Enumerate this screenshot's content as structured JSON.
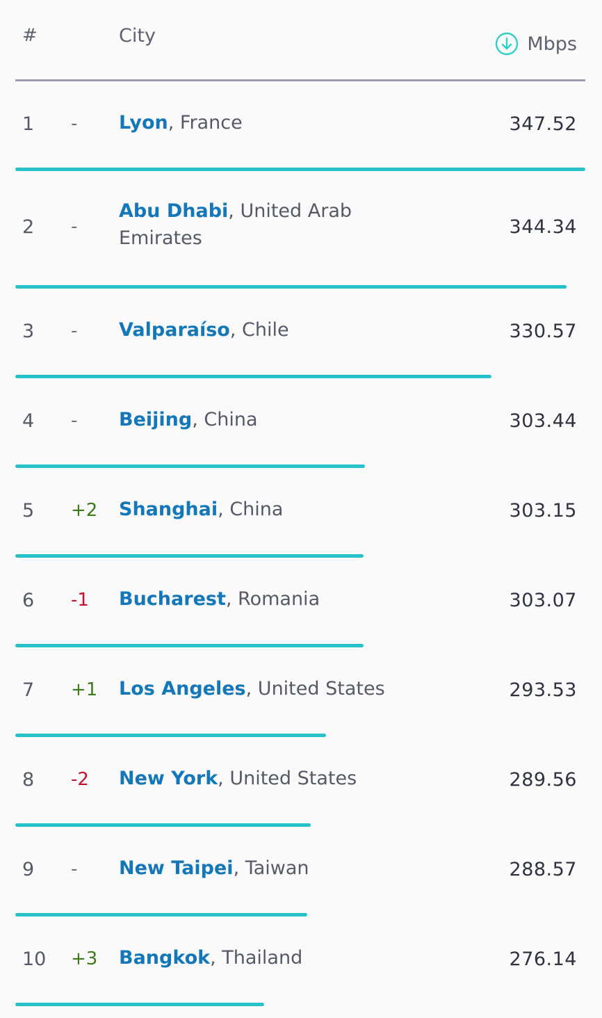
{
  "header": {
    "rank_label": "#",
    "city_label": "City",
    "unit_label": "Mbps",
    "unit_icon": "download-arrow-circle-icon"
  },
  "colors": {
    "bar": "#27c2c9",
    "city_link": "#1477b8",
    "change_up": "#3f7a1a",
    "change_down": "#c8102e",
    "header_rule": "#9e9bb3"
  },
  "rows": [
    {
      "rank": "1",
      "change": "-",
      "city": "Lyon",
      "sep": ",",
      "country": " France",
      "speed": "347.52",
      "speed_value": 347.52
    },
    {
      "rank": "2",
      "change": "-",
      "city": "Abu Dhabi",
      "sep": ",",
      "country": " United Arab Emirates",
      "speed": "344.34",
      "speed_value": 344.34
    },
    {
      "rank": "3",
      "change": "-",
      "city": "Valparaíso",
      "sep": ",",
      "country": " Chile",
      "speed": "330.57",
      "speed_value": 330.57
    },
    {
      "rank": "4",
      "change": "-",
      "city": "Beijing",
      "sep": ",",
      "country": " China",
      "speed": "303.44",
      "speed_value": 303.44
    },
    {
      "rank": "5",
      "change": "+2",
      "city": "Shanghai",
      "sep": ",",
      "country": " China",
      "speed": "303.15",
      "speed_value": 303.15
    },
    {
      "rank": "6",
      "change": "-1",
      "city": "Bucharest",
      "sep": ",",
      "country": " Romania",
      "speed": "303.07",
      "speed_value": 303.07
    },
    {
      "rank": "7",
      "change": "+1",
      "city": "Los Angeles",
      "sep": ",",
      "country": " United States",
      "speed": "293.53",
      "speed_value": 293.53
    },
    {
      "rank": "8",
      "change": "-2",
      "city": "New York",
      "sep": ",",
      "country": " United States",
      "speed": "289.56",
      "speed_value": 289.56
    },
    {
      "rank": "9",
      "change": "-",
      "city": "New Taipei",
      "sep": ",",
      "country": " Taiwan",
      "speed": "288.57",
      "speed_value": 288.57
    },
    {
      "rank": "10",
      "change": "+3",
      "city": "Bangkok",
      "sep": ",",
      "country": " Thailand",
      "speed": "276.14",
      "speed_value": 276.14
    }
  ]
}
